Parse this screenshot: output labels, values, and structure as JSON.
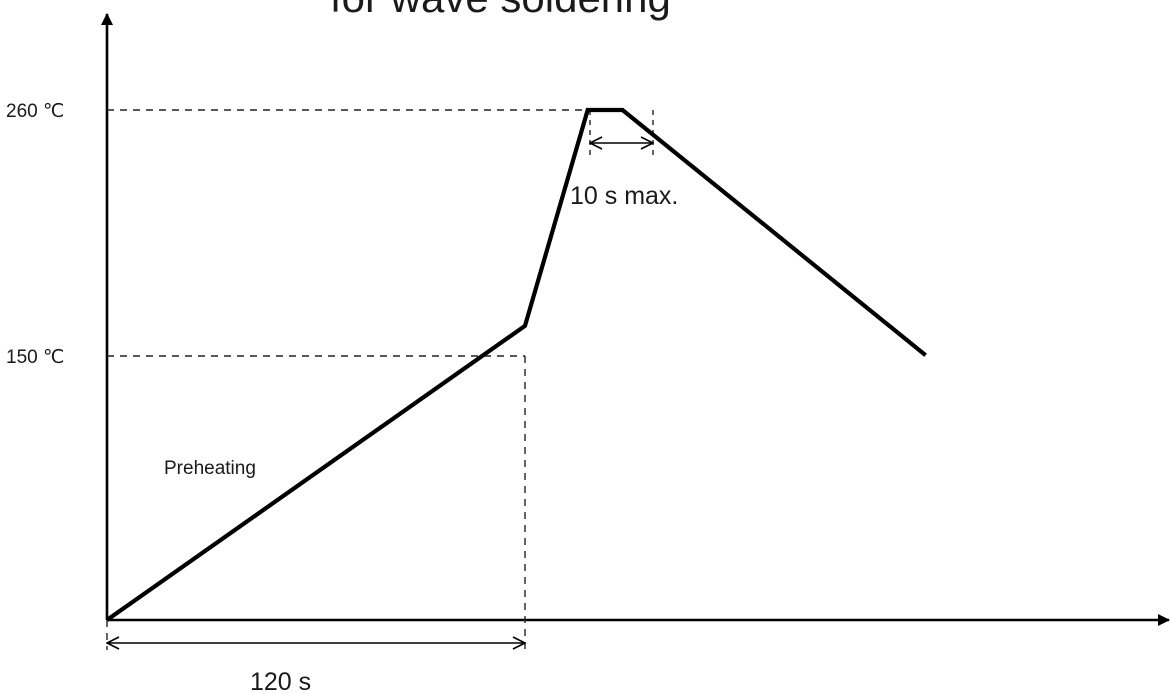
{
  "title_visible": "for wave soldering",
  "y_ticks": {
    "t260": "260 ℃",
    "t150": "150 ℃"
  },
  "annotations": {
    "peak_duration": "10 s max.",
    "preheating": "Preheating",
    "preheat_time": "120 s"
  },
  "profile": {
    "points": [
      {
        "time_s": 0,
        "temp_c": 0
      },
      {
        "time_s": 120,
        "temp_c": 150
      },
      {
        "time_s": 138,
        "temp_c": 260
      },
      {
        "time_s": 148,
        "temp_c": 260
      },
      {
        "time_s": 235,
        "temp_c": 135
      }
    ]
  },
  "colors": {
    "line": "#000000",
    "text": "#1a1a1a",
    "background": "#ffffff"
  }
}
